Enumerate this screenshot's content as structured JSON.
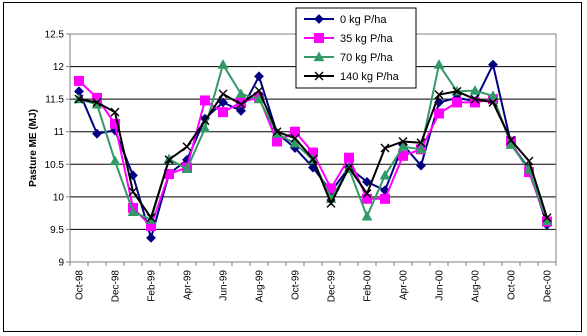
{
  "chart_data": {
    "type": "line",
    "title": "",
    "xlabel": "",
    "ylabel": "Pasture ME (MJ)",
    "ylim": [
      9,
      12.5
    ],
    "yticks": [
      "9",
      "9.5",
      "10",
      "10.5",
      "11",
      "11.5",
      "12",
      "12.5"
    ],
    "grid": true,
    "legend_position": "top-right",
    "x": [
      "Oct-98",
      "Nov-98",
      "Dec-98",
      "Jan-99",
      "Feb-99",
      "Mar-99",
      "Apr-99",
      "May-99",
      "Jun-99",
      "Jul-99",
      "Aug-99",
      "Sep-99",
      "Oct-99",
      "Nov-99",
      "Dec-99",
      "Jan-00",
      "Feb-00",
      "Mar-00",
      "Apr-00",
      "May-00",
      "Jun-00",
      "Jul-00",
      "Aug-00",
      "Sep-00",
      "Oct-00",
      "Nov-00",
      "Dec-00"
    ],
    "x_tick_labels": [
      "Oct-98",
      "",
      "Dec-98",
      "",
      "Feb-99",
      "",
      "Apr-99",
      "",
      "Jun-99",
      "",
      "Aug-99",
      "",
      "Oct-99",
      "",
      "Dec-99",
      "",
      "Feb-00",
      "",
      "Apr-00",
      "",
      "Jun-00",
      "",
      "Aug-00",
      "",
      "Oct-00",
      "",
      "Dec-00"
    ],
    "series": [
      {
        "name": "0 kg P/ha",
        "color": "#000080",
        "marker": "diamond",
        "values": [
          11.62,
          10.97,
          11.02,
          10.33,
          9.37,
          10.35,
          10.57,
          11.2,
          11.45,
          11.32,
          11.85,
          10.98,
          10.75,
          10.45,
          10.08,
          10.45,
          10.23,
          10.1,
          10.8,
          10.48,
          11.45,
          11.52,
          11.47,
          12.03,
          10.82,
          10.43,
          9.57
        ]
      },
      {
        "name": "35 kg P/ha",
        "color": "#ff00ff",
        "marker": "square",
        "values": [
          11.78,
          11.52,
          11.12,
          9.83,
          9.55,
          10.35,
          10.45,
          11.48,
          11.3,
          11.45,
          11.53,
          10.85,
          11.0,
          10.68,
          10.13,
          10.6,
          9.97,
          9.97,
          10.63,
          10.73,
          11.28,
          11.45,
          11.45,
          11.5,
          10.85,
          10.38,
          9.62
        ]
      },
      {
        "name": "70 kg P/ha",
        "color": "#339966",
        "marker": "triangle",
        "values": [
          11.5,
          11.42,
          10.55,
          9.77,
          9.65,
          10.58,
          10.43,
          11.05,
          12.03,
          11.58,
          11.5,
          10.97,
          10.82,
          10.57,
          9.97,
          10.43,
          9.7,
          10.33,
          10.77,
          10.73,
          12.03,
          11.62,
          11.63,
          11.55,
          10.8,
          10.42,
          9.63
        ]
      },
      {
        "name": "140 kg P/ha",
        "color": "#000000",
        "marker": "x",
        "values": [
          11.5,
          11.45,
          11.3,
          10.08,
          9.68,
          10.57,
          10.77,
          11.17,
          11.58,
          11.42,
          11.63,
          11.0,
          10.9,
          10.58,
          9.9,
          10.45,
          10.05,
          10.75,
          10.85,
          10.83,
          11.57,
          11.62,
          11.5,
          11.45,
          10.87,
          10.55,
          9.68
        ]
      }
    ]
  }
}
